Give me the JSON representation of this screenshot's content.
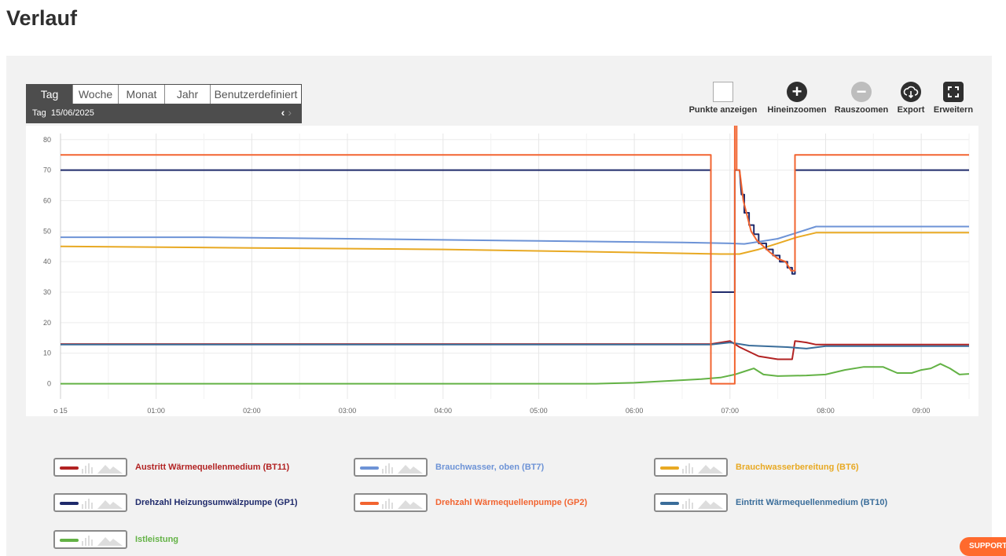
{
  "page": {
    "title": "Verlauf"
  },
  "range": {
    "tabs": [
      {
        "label": "Tag",
        "active": true
      },
      {
        "label": "Woche",
        "active": false
      },
      {
        "label": "Monat",
        "active": false
      },
      {
        "label": "Jahr",
        "active": false
      },
      {
        "label": "Benutzerdefiniert",
        "active": false
      }
    ],
    "label": "Tag  15/06/2025",
    "prev": "‹",
    "next": "›"
  },
  "toolbar": {
    "show_points": "Punkte anzeigen",
    "zoom_in": "Hineinzoomen",
    "zoom_out": "Rauszoomen",
    "export": "Export",
    "expand": "Erweitern"
  },
  "support": {
    "label": "SUPPORT"
  },
  "chart_data": {
    "type": "line",
    "ylim": [
      -5,
      82
    ],
    "yticks": [
      0,
      10,
      20,
      30,
      40,
      50,
      60,
      70,
      80
    ],
    "xlim": [
      0,
      9.5
    ],
    "xticks": [
      {
        "v": 0,
        "label": "o 15"
      },
      {
        "v": 1,
        "label": "01:00"
      },
      {
        "v": 2,
        "label": "02:00"
      },
      {
        "v": 3,
        "label": "03:00"
      },
      {
        "v": 4,
        "label": "04:00"
      },
      {
        "v": 5,
        "label": "05:00"
      },
      {
        "v": 6,
        "label": "06:00"
      },
      {
        "v": 7,
        "label": "07:00"
      },
      {
        "v": 8,
        "label": "08:00"
      },
      {
        "v": 9,
        "label": "09:00"
      }
    ],
    "grid": true,
    "series": [
      {
        "name": "Austritt Wärmequellenmedium (BT11)",
        "color": "#b22222",
        "points": [
          [
            0,
            13
          ],
          [
            6.8,
            13
          ],
          [
            7,
            14
          ],
          [
            7.1,
            12
          ],
          [
            7.3,
            9
          ],
          [
            7.5,
            8
          ],
          [
            7.65,
            8
          ],
          [
            7.68,
            14
          ],
          [
            7.8,
            13.5
          ],
          [
            7.9,
            12.8
          ],
          [
            9.5,
            12.8
          ]
        ]
      },
      {
        "name": "Brauchwasser, oben (BT7)",
        "color": "#6d93d6",
        "points": [
          [
            0,
            48
          ],
          [
            1.5,
            48
          ],
          [
            3,
            47.5
          ],
          [
            5,
            46.8
          ],
          [
            6.5,
            46.3
          ],
          [
            7,
            46
          ],
          [
            7.15,
            45.8
          ],
          [
            7.3,
            46.5
          ],
          [
            7.5,
            47.5
          ],
          [
            7.7,
            49.5
          ],
          [
            7.9,
            51.5
          ],
          [
            9.5,
            51.5
          ]
        ]
      },
      {
        "name": "Brauchwasserbereitung (BT6)",
        "color": "#e8a923",
        "points": [
          [
            0,
            45
          ],
          [
            2,
            44.5
          ],
          [
            4,
            44
          ],
          [
            6,
            43
          ],
          [
            6.9,
            42.5
          ],
          [
            7.1,
            42.5
          ],
          [
            7.3,
            44
          ],
          [
            7.5,
            46
          ],
          [
            7.7,
            48
          ],
          [
            7.9,
            49.5
          ],
          [
            9.5,
            49.5
          ]
        ]
      },
      {
        "name": "Drehzahl Heizungsumwälzpumpe (GP1)",
        "color": "#1f2a6b",
        "points": [
          [
            0,
            70
          ],
          [
            6.8,
            70
          ],
          [
            6.8,
            30
          ],
          [
            7.05,
            30
          ],
          [
            7.05,
            70
          ],
          [
            7.1,
            70
          ],
          [
            7.12,
            62
          ],
          [
            7.15,
            62
          ],
          [
            7.15,
            56
          ],
          [
            7.2,
            56
          ],
          [
            7.2,
            52
          ],
          [
            7.25,
            52
          ],
          [
            7.25,
            49
          ],
          [
            7.3,
            49
          ],
          [
            7.3,
            46
          ],
          [
            7.38,
            46
          ],
          [
            7.38,
            44
          ],
          [
            7.45,
            44
          ],
          [
            7.45,
            42
          ],
          [
            7.52,
            42
          ],
          [
            7.52,
            40
          ],
          [
            7.6,
            40
          ],
          [
            7.6,
            38
          ],
          [
            7.65,
            38
          ],
          [
            7.65,
            36
          ],
          [
            7.68,
            36
          ],
          [
            7.68,
            70
          ],
          [
            9.5,
            70
          ]
        ]
      },
      {
        "name": "Drehzahl Wärmequellenpumpe (GP2)",
        "color": "#f26430",
        "points": [
          [
            0,
            75
          ],
          [
            6.8,
            75
          ],
          [
            6.8,
            0
          ],
          [
            7.05,
            0
          ],
          [
            7.05,
            85
          ],
          [
            7.07,
            85
          ],
          [
            7.07,
            70
          ],
          [
            7.1,
            70
          ],
          [
            7.14,
            60
          ],
          [
            7.18,
            55
          ],
          [
            7.22,
            50
          ],
          [
            7.28,
            47
          ],
          [
            7.35,
            45
          ],
          [
            7.42,
            43
          ],
          [
            7.5,
            41
          ],
          [
            7.58,
            40
          ],
          [
            7.64,
            37
          ],
          [
            7.68,
            37
          ],
          [
            7.68,
            75
          ],
          [
            9.5,
            75
          ]
        ]
      },
      {
        "name": "Eintritt Wärmequellenmedium (BT10)",
        "color": "#3a6d9a",
        "points": [
          [
            0,
            12.8
          ],
          [
            6.8,
            12.8
          ],
          [
            7,
            13.5
          ],
          [
            7.2,
            12.5
          ],
          [
            7.6,
            12
          ],
          [
            7.8,
            11.5
          ],
          [
            8,
            12.3
          ],
          [
            9.5,
            12.3
          ]
        ]
      },
      {
        "name": "Istleistung",
        "color": "#63b245",
        "points": [
          [
            0,
            0
          ],
          [
            5.6,
            0
          ],
          [
            6,
            0.3
          ],
          [
            6.4,
            1
          ],
          [
            6.7,
            1.5
          ],
          [
            6.9,
            2
          ],
          [
            7.05,
            3
          ],
          [
            7.15,
            4
          ],
          [
            7.25,
            5
          ],
          [
            7.35,
            3
          ],
          [
            7.5,
            2.5
          ],
          [
            7.8,
            2.7
          ],
          [
            8.0,
            3
          ],
          [
            8.2,
            4.5
          ],
          [
            8.4,
            5.5
          ],
          [
            8.6,
            5.5
          ],
          [
            8.75,
            3.5
          ],
          [
            8.9,
            3.5
          ],
          [
            9.0,
            4.5
          ],
          [
            9.1,
            5
          ],
          [
            9.2,
            6.5
          ],
          [
            9.3,
            5
          ],
          [
            9.4,
            3
          ],
          [
            9.5,
            3.2
          ]
        ]
      }
    ]
  }
}
